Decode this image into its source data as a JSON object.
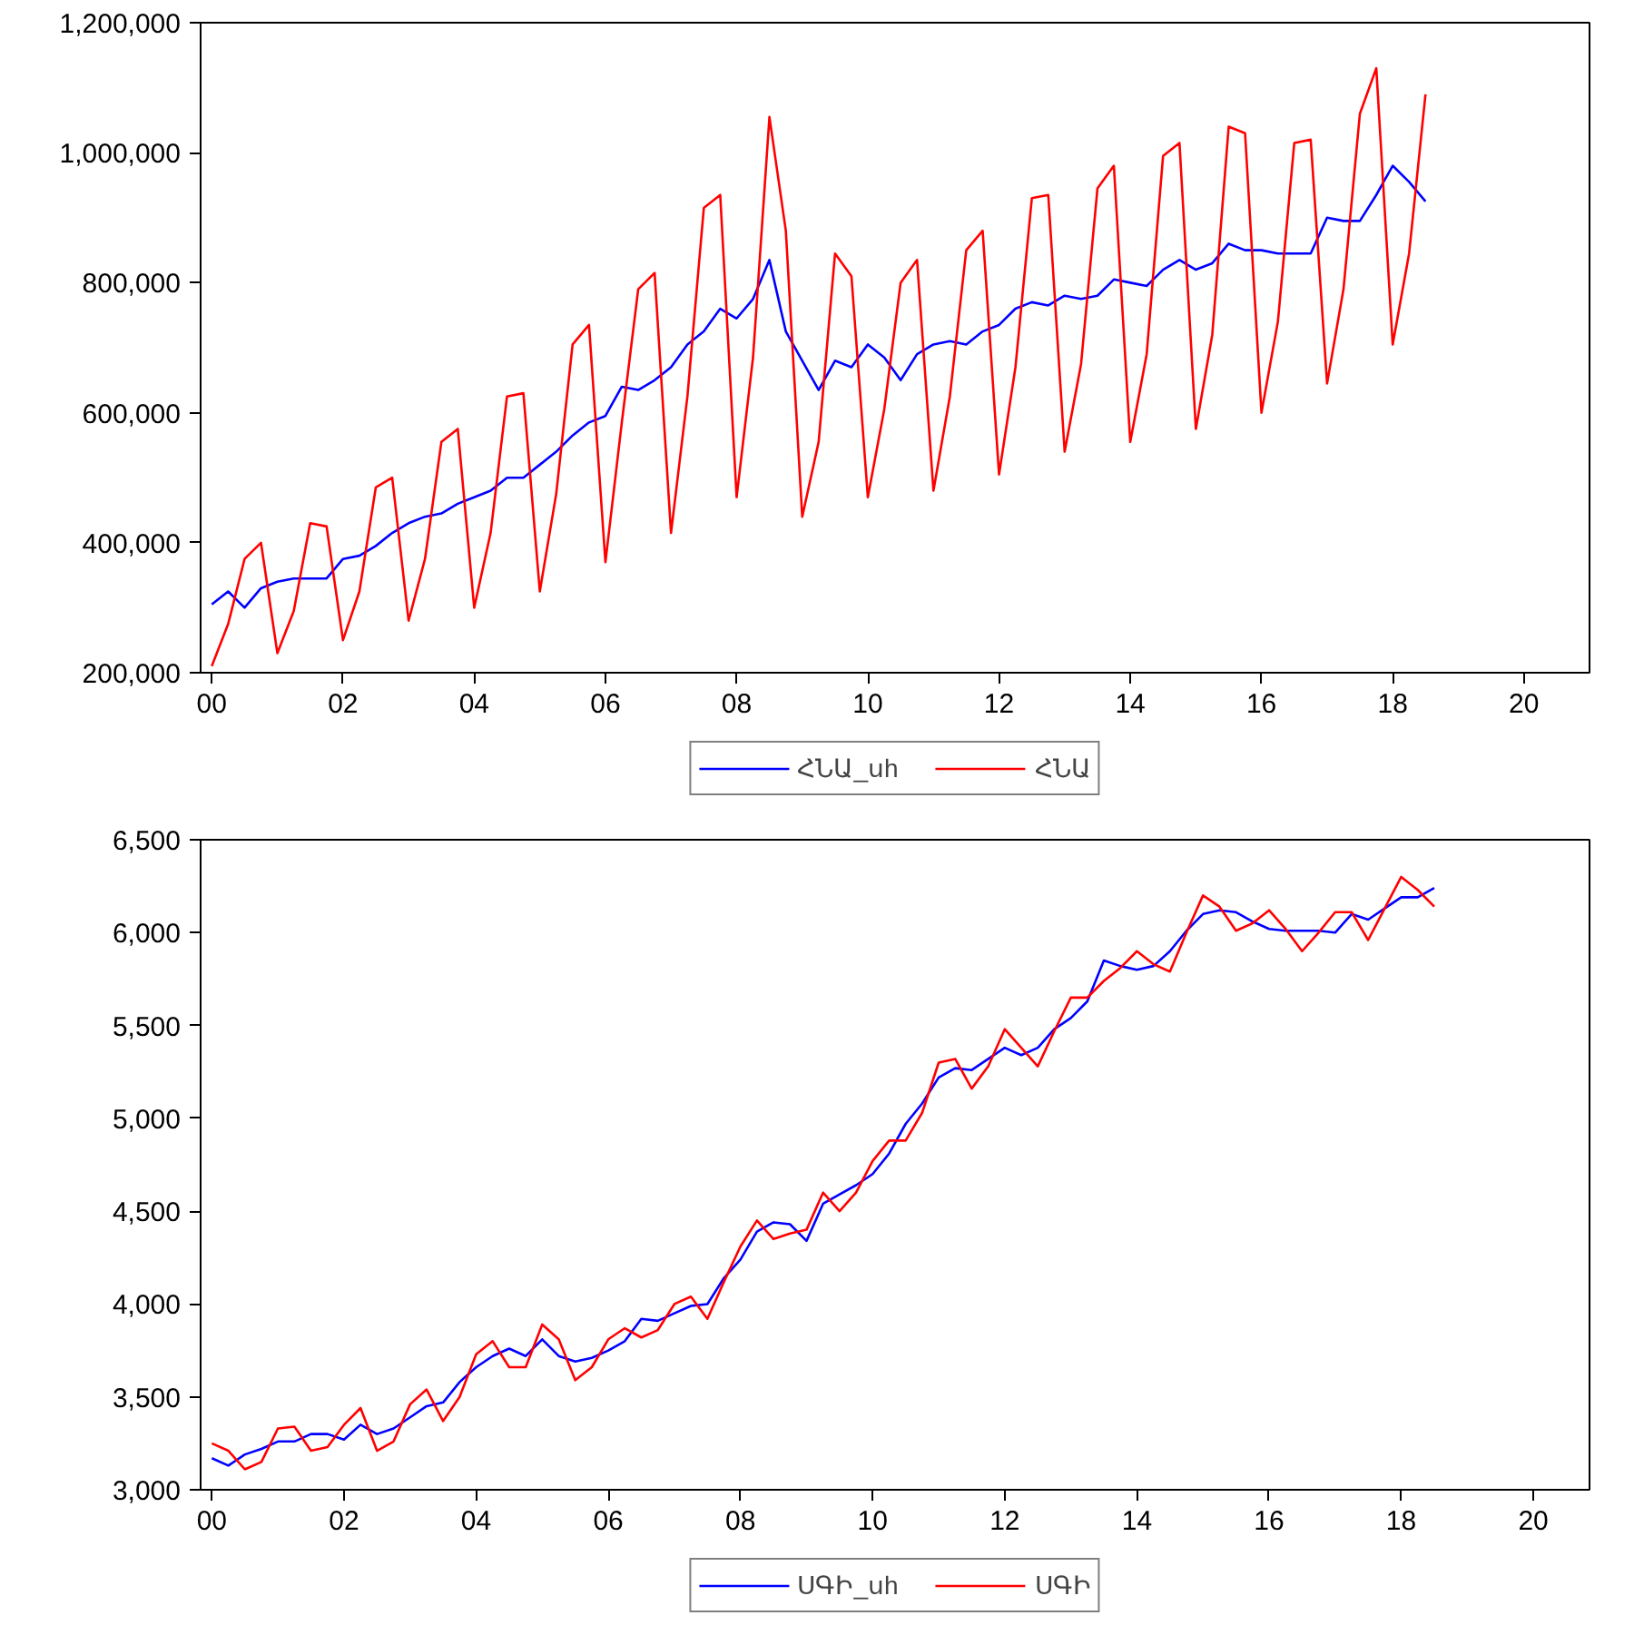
{
  "chart_data": [
    {
      "type": "line",
      "legend": "bottom",
      "grid": false,
      "marker": "none",
      "line_style": "solid",
      "x": [
        0,
        0.25,
        0.5,
        0.75,
        1,
        1.25,
        1.5,
        1.75,
        2,
        2.25,
        2.5,
        2.75,
        3,
        3.25,
        3.5,
        3.75,
        4,
        4.25,
        4.5,
        4.75,
        5,
        5.25,
        5.5,
        5.75,
        6,
        6.25,
        6.5,
        6.75,
        7,
        7.25,
        7.5,
        7.75,
        8,
        8.25,
        8.5,
        8.75,
        9,
        9.25,
        9.5,
        9.75,
        10,
        10.25,
        10.5,
        10.75,
        11,
        11.25,
        11.5,
        11.75,
        12,
        12.25,
        12.5,
        12.75,
        13,
        13.25,
        13.5,
        13.75,
        14,
        14.25,
        14.5,
        14.75,
        15,
        15.25,
        15.5,
        15.75,
        16,
        16.25,
        16.5,
        16.75,
        17,
        17.25,
        17.5,
        17.75,
        18,
        18.25,
        18.5
      ],
      "xlim": [
        -0.17,
        21.0
      ],
      "xticks": [
        {
          "value": 0,
          "label": "00"
        },
        {
          "value": 2,
          "label": "02"
        },
        {
          "value": 4,
          "label": "04"
        },
        {
          "value": 6,
          "label": "06"
        },
        {
          "value": 8,
          "label": "08"
        },
        {
          "value": 10,
          "label": "10"
        },
        {
          "value": 12,
          "label": "12"
        },
        {
          "value": 14,
          "label": "14"
        },
        {
          "value": 16,
          "label": "16"
        },
        {
          "value": 18,
          "label": "18"
        },
        {
          "value": 20,
          "label": "20"
        }
      ],
      "ylim": [
        200000,
        1200000
      ],
      "yticks": [
        {
          "value": 200000,
          "label": "200,000"
        },
        {
          "value": 400000,
          "label": "400,000"
        },
        {
          "value": 600000,
          "label": "600,000"
        },
        {
          "value": 800000,
          "label": "800,000"
        },
        {
          "value": 1000000,
          "label": "1,000,000"
        },
        {
          "value": 1200000,
          "label": "1,200,000"
        }
      ],
      "series": [
        {
          "name": "ՀՆԱ_սh",
          "color": "#0000ff",
          "values": [
            305000,
            325000,
            300000,
            330000,
            340000,
            345000,
            345000,
            345000,
            375000,
            380000,
            395000,
            415000,
            430000,
            440000,
            445000,
            460000,
            470000,
            480000,
            500000,
            500000,
            520000,
            540000,
            565000,
            585000,
            595000,
            640000,
            635000,
            650000,
            670000,
            705000,
            725000,
            760000,
            745000,
            775000,
            835000,
            725000,
            680000,
            635000,
            680000,
            670000,
            705000,
            685000,
            650000,
            690000,
            705000,
            710000,
            705000,
            725000,
            735000,
            760000,
            770000,
            765000,
            780000,
            775000,
            780000,
            805000,
            800000,
            795000,
            820000,
            835000,
            820000,
            830000,
            860000,
            850000,
            850000,
            845000,
            845000,
            845000,
            900000,
            895000,
            895000,
            935000,
            980000,
            955000,
            925000
          ]
        },
        {
          "name": "ՀՆԱ",
          "color": "#ff0000",
          "values": [
            210000,
            275000,
            375000,
            400000,
            230000,
            295000,
            430000,
            425000,
            250000,
            325000,
            485000,
            500000,
            280000,
            375000,
            555000,
            575000,
            300000,
            415000,
            625000,
            630000,
            325000,
            475000,
            705000,
            735000,
            370000,
            585000,
            790000,
            815000,
            415000,
            625000,
            915000,
            935000,
            470000,
            685000,
            1055000,
            880000,
            440000,
            555000,
            845000,
            810000,
            470000,
            605000,
            800000,
            835000,
            480000,
            625000,
            850000,
            880000,
            505000,
            670000,
            930000,
            935000,
            540000,
            675000,
            945000,
            980000,
            555000,
            690000,
            995000,
            1015000,
            575000,
            720000,
            1040000,
            1030000,
            600000,
            740000,
            1015000,
            1020000,
            645000,
            790000,
            1060000,
            1130000,
            705000,
            845000,
            1090000
          ]
        }
      ]
    },
    {
      "type": "line",
      "legend": "bottom",
      "grid": false,
      "marker": "none",
      "line_style": "solid",
      "x": [
        0,
        0.25,
        0.5,
        0.75,
        1,
        1.25,
        1.5,
        1.75,
        2,
        2.25,
        2.5,
        2.75,
        3,
        3.25,
        3.5,
        3.75,
        4,
        4.25,
        4.5,
        4.75,
        5,
        5.25,
        5.5,
        5.75,
        6,
        6.25,
        6.5,
        6.75,
        7,
        7.25,
        7.5,
        7.75,
        8,
        8.25,
        8.5,
        8.75,
        9,
        9.25,
        9.5,
        9.75,
        10,
        10.25,
        10.5,
        10.75,
        11,
        11.25,
        11.5,
        11.75,
        12,
        12.25,
        12.5,
        12.75,
        13,
        13.25,
        13.5,
        13.75,
        14,
        14.25,
        14.5,
        14.75,
        15,
        15.25,
        15.5,
        15.75,
        16,
        16.25,
        16.5,
        16.75,
        17,
        17.25,
        17.5,
        17.75,
        18,
        18.25,
        18.5
      ],
      "xlim": [
        -0.17,
        20.85
      ],
      "xticks": [
        {
          "value": 0,
          "label": "00"
        },
        {
          "value": 2,
          "label": "02"
        },
        {
          "value": 4,
          "label": "04"
        },
        {
          "value": 6,
          "label": "06"
        },
        {
          "value": 8,
          "label": "08"
        },
        {
          "value": 10,
          "label": "10"
        },
        {
          "value": 12,
          "label": "12"
        },
        {
          "value": 14,
          "label": "14"
        },
        {
          "value": 16,
          "label": "16"
        },
        {
          "value": 18,
          "label": "18"
        },
        {
          "value": 20,
          "label": "20"
        }
      ],
      "ylim": [
        3000,
        6500
      ],
      "yticks": [
        {
          "value": 3000,
          "label": "3,000"
        },
        {
          "value": 3500,
          "label": "3,500"
        },
        {
          "value": 4000,
          "label": "4,000"
        },
        {
          "value": 4500,
          "label": "4,500"
        },
        {
          "value": 5000,
          "label": "5,000"
        },
        {
          "value": 5500,
          "label": "5,500"
        },
        {
          "value": 6000,
          "label": "6,000"
        },
        {
          "value": 6500,
          "label": "6,500"
        }
      ],
      "series": [
        {
          "name": "ՍԳԻ_սh",
          "color": "#0000ff",
          "values": [
            3170,
            3130,
            3190,
            3220,
            3260,
            3260,
            3300,
            3300,
            3270,
            3350,
            3300,
            3330,
            3390,
            3450,
            3470,
            3580,
            3660,
            3720,
            3760,
            3720,
            3810,
            3720,
            3690,
            3710,
            3750,
            3800,
            3920,
            3910,
            3950,
            3990,
            4000,
            4140,
            4240,
            4390,
            4440,
            4430,
            4340,
            4540,
            4590,
            4640,
            4700,
            4810,
            4970,
            5080,
            5220,
            5270,
            5260,
            5320,
            5380,
            5340,
            5380,
            5480,
            5540,
            5630,
            5850,
            5820,
            5800,
            5820,
            5900,
            6010,
            6100,
            6120,
            6110,
            6060,
            6020,
            6010,
            6010,
            6010,
            6000,
            6100,
            6070,
            6130,
            6190,
            6190,
            6240
          ]
        },
        {
          "name": "ՍԳԻ",
          "color": "#ff0000",
          "values": [
            3250,
            3210,
            3110,
            3150,
            3330,
            3340,
            3210,
            3230,
            3350,
            3440,
            3210,
            3260,
            3460,
            3540,
            3370,
            3500,
            3730,
            3800,
            3660,
            3660,
            3890,
            3810,
            3590,
            3660,
            3810,
            3870,
            3820,
            3860,
            4000,
            4040,
            3920,
            4120,
            4310,
            4450,
            4350,
            4380,
            4400,
            4600,
            4500,
            4600,
            4770,
            4880,
            4880,
            5030,
            5300,
            5320,
            5160,
            5280,
            5480,
            5380,
            5280,
            5470,
            5650,
            5650,
            5740,
            5810,
            5900,
            5830,
            5790,
            6000,
            6200,
            6140,
            6010,
            6050,
            6120,
            6020,
            5900,
            6000,
            6110,
            6110,
            5960,
            6130,
            6300,
            6230,
            6140
          ]
        }
      ]
    }
  ]
}
